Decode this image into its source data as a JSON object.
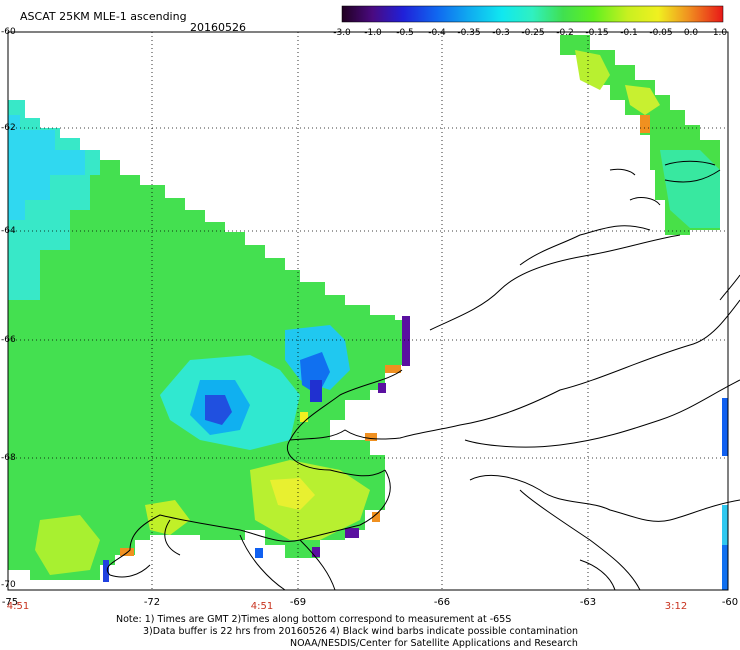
{
  "header": {
    "title": "ASCAT 25KM MLE-1 ascending",
    "date": "20160526"
  },
  "colorbar": {
    "labels": [
      "-3.0",
      "-1.0",
      "-0.5",
      "-0.4",
      "-0.35",
      "-0.3",
      "-0.25",
      "-0.2",
      "-0.15",
      "-0.1",
      "-0.05",
      "0.0",
      "1.0"
    ],
    "colors": [
      "#2a0030",
      "#5a10a0",
      "#2020d0",
      "#1060f0",
      "#10a0f0",
      "#10e0f0",
      "#40f0b0",
      "#40e040",
      "#70f020",
      "#c0f020",
      "#f0f020",
      "#f0a020",
      "#e82020"
    ]
  },
  "map": {
    "y_axis_labels": [
      "-60",
      "-62",
      "-64",
      "-66",
      "-68",
      "-70"
    ],
    "x_axis_labels": [
      "-75",
      "-72",
      "-69",
      "-66",
      "-63",
      "-60"
    ],
    "time_labels": [
      "4:51",
      "4:51",
      "3:12"
    ]
  },
  "notes": {
    "line1": "Note: 1) Times are GMT 2)Times along bottom correspond to measurement at -65S",
    "line2": "3)Data buffer is 22 hrs from 20160526 4) Black wind barbs indicate possible contamination",
    "line3": "NOAA/NESDIS/Center for Satellite Applications and Research"
  }
}
